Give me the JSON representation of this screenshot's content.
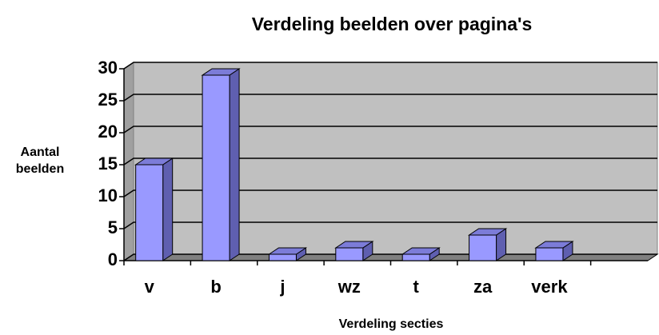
{
  "chart_data": {
    "type": "bar",
    "title": "Verdeling beelden over pagina's",
    "x_label": "Verdeling secties",
    "y_label": "Aantal beelden",
    "categories": [
      "v",
      "b",
      "j",
      "wz",
      "t",
      "za",
      "verk",
      null
    ],
    "values": [
      15,
      29,
      1,
      2,
      1,
      4,
      2,
      null
    ],
    "color": "#9999ff",
    "ylim": [
      0,
      30
    ],
    "yticks": [
      0,
      5,
      10,
      15,
      20,
      25,
      30
    ],
    "grid": true
  }
}
